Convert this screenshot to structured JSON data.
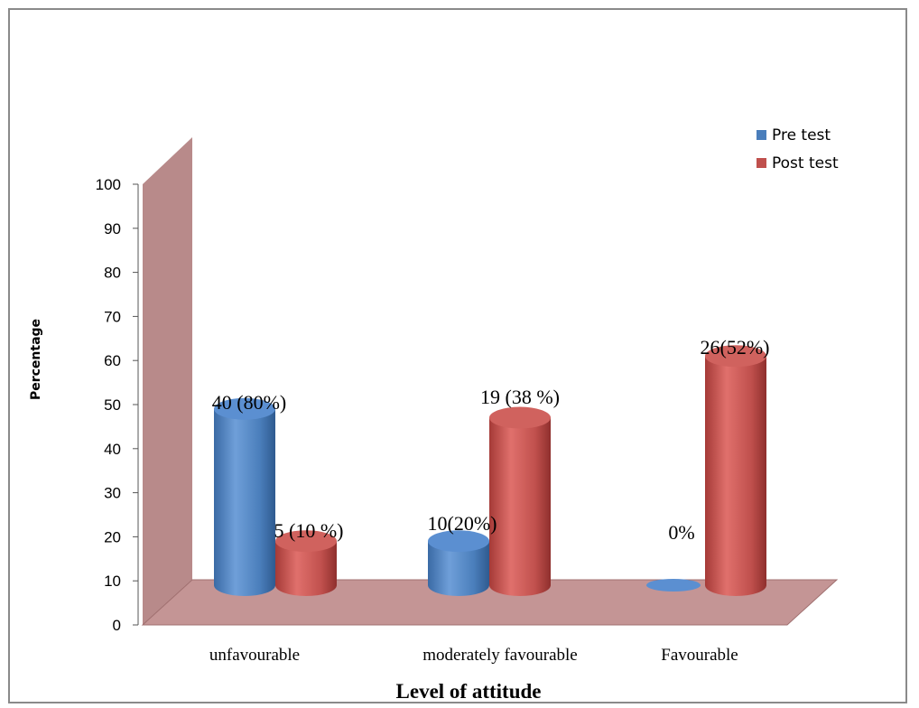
{
  "chart_data": {
    "type": "bar",
    "xlabel": "Level of attitude",
    "ylabel": "Percentage",
    "ylim": [
      0,
      100
    ],
    "yticks": [
      "0",
      "10",
      "20",
      "30",
      "40",
      "50",
      "60",
      "70",
      "80",
      "90",
      "100"
    ],
    "categories": [
      "unfavourable",
      "moderately favourable",
      "Favourable"
    ],
    "legend_position": "top-right",
    "grid": false,
    "series": [
      {
        "name": "Pre test",
        "color": "#4a7ebb",
        "values": [
          40,
          10,
          0
        ],
        "labels": [
          "40 (80%)",
          "10(20%)",
          "0%"
        ]
      },
      {
        "name": "Post test",
        "color": "#c0504d",
        "values": [
          10,
          38,
          52
        ],
        "labels": [
          "5 (10 %)",
          "19 (38 %)",
          "26(52%)"
        ]
      }
    ]
  }
}
